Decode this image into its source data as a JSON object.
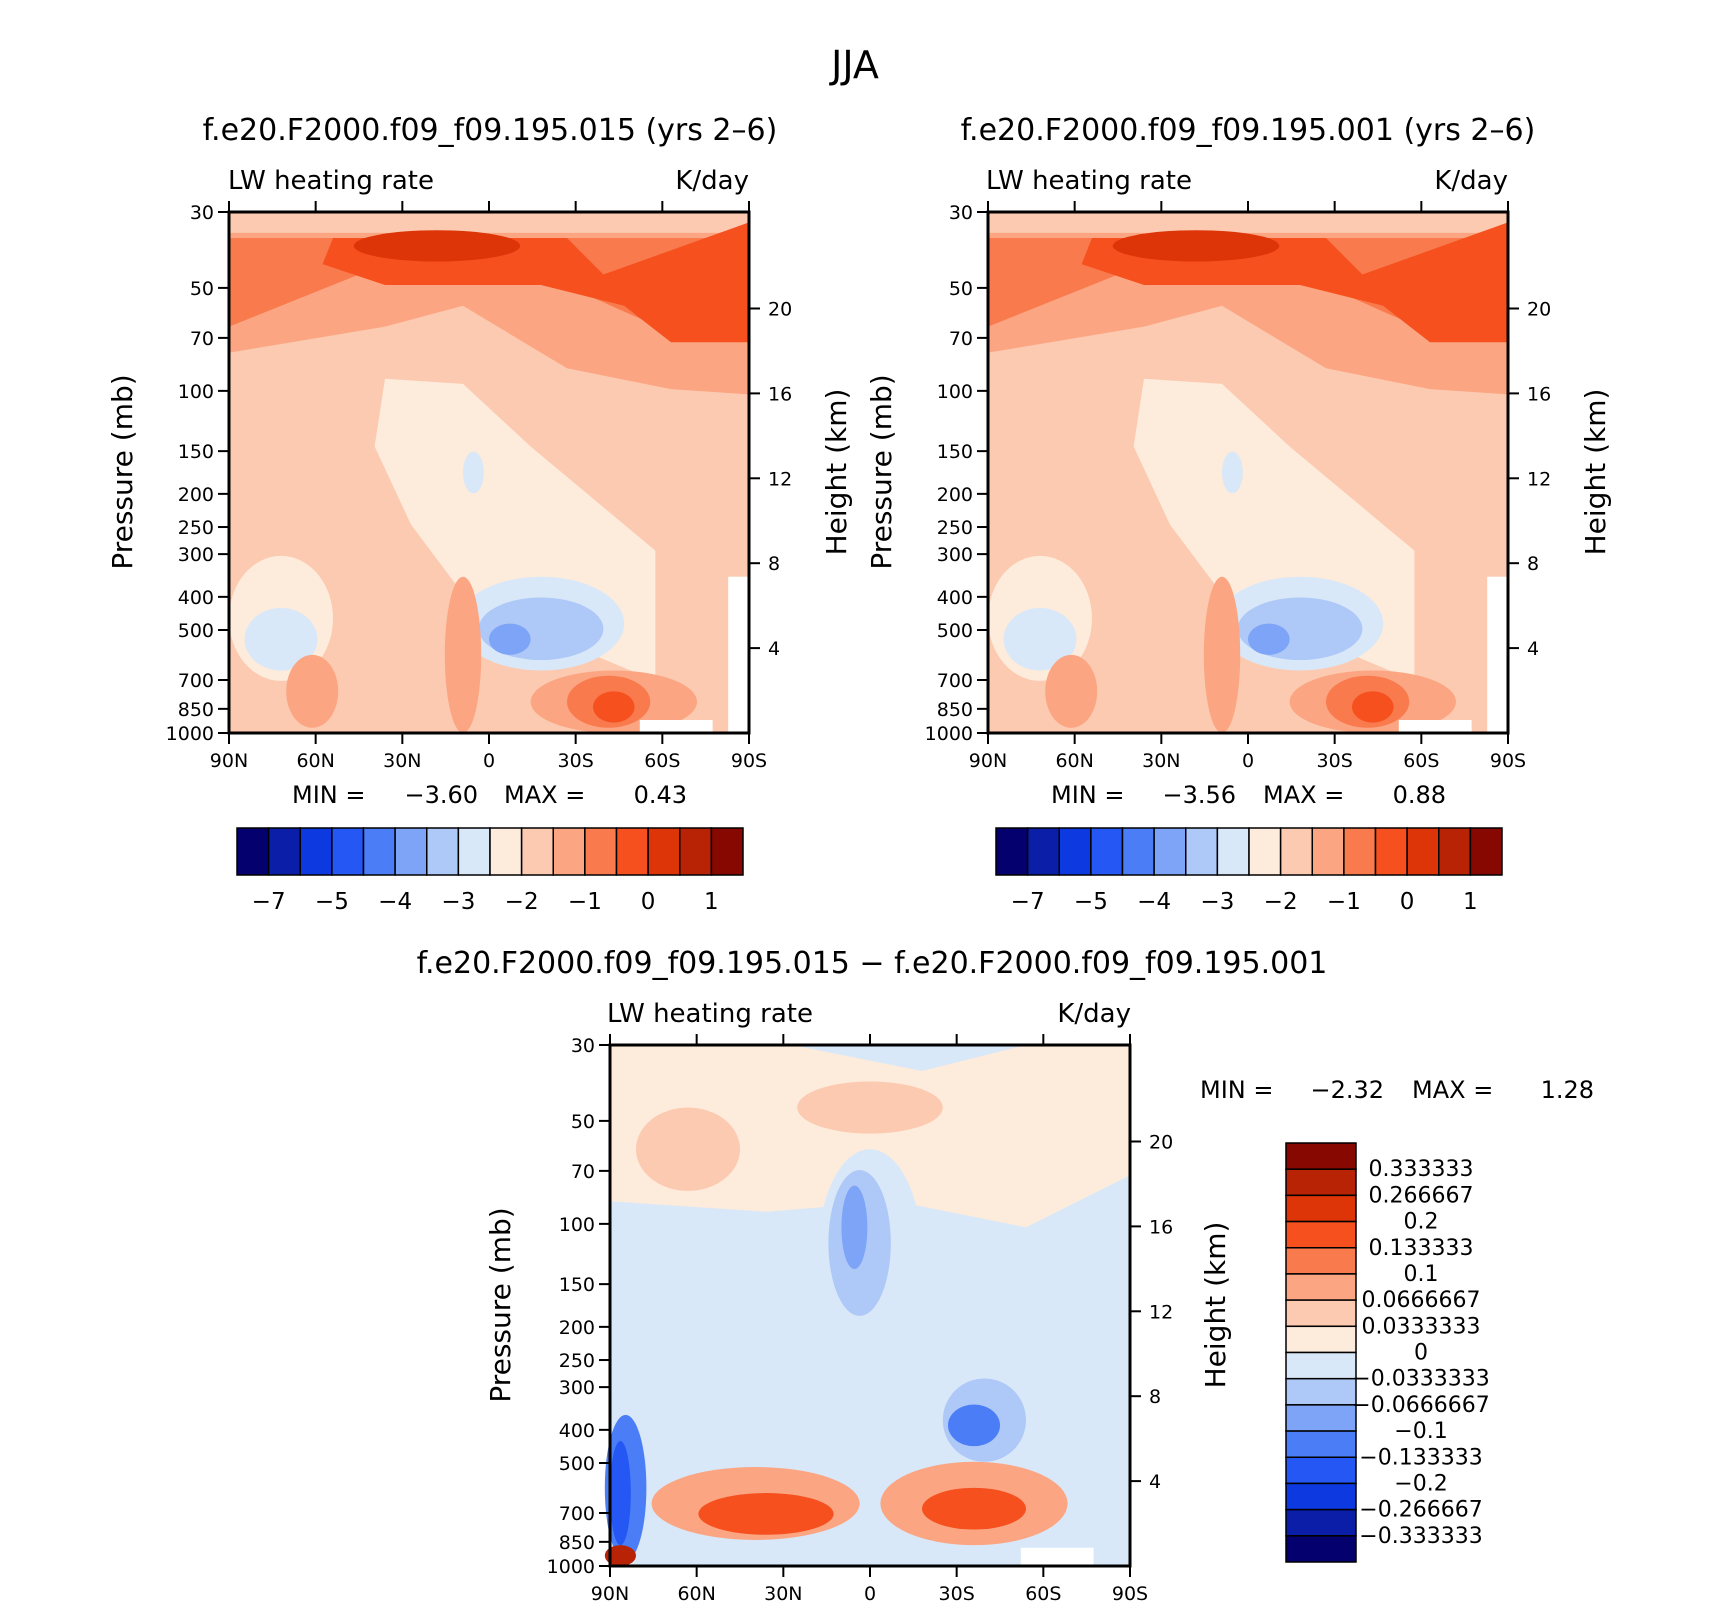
{
  "figure_title": "JJA",
  "chart_data": [
    {
      "id": "p1",
      "type": "heatmap",
      "title": "f.e20.F2000.f09_f09.195.015 (yrs 2–6)",
      "left_subtitle": "LW heating rate",
      "right_subtitle": "K/day",
      "ylabel": "Pressure (mb)",
      "y2label": "Height (km)",
      "x_ticks": [
        "90N",
        "60N",
        "30N",
        "0",
        "30S",
        "60S",
        "90S"
      ],
      "x_range_deg": [
        90,
        -90
      ],
      "y_ticks": [
        "30",
        "50",
        "70",
        "100",
        "150",
        "200",
        "250",
        "300",
        "400",
        "500",
        "700",
        "850",
        "1000"
      ],
      "y_range_mb": [
        30,
        1000
      ],
      "height_ticks_km": [
        "20",
        "16",
        "12",
        "8",
        "4"
      ],
      "min_label": "MIN =",
      "min_value": "−3.60",
      "max_label": "MAX =",
      "max_value": "0.43",
      "colorbar_tick_labels": [
        "−7",
        "−5",
        "−4",
        "−3",
        "−2",
        "−1",
        "0",
        "1"
      ]
    },
    {
      "id": "p2",
      "type": "heatmap",
      "title": "f.e20.F2000.f09_f09.195.001 (yrs 2–6)",
      "left_subtitle": "LW heating rate",
      "right_subtitle": "K/day",
      "ylabel": "Pressure (mb)",
      "y2label": "Height (km)",
      "x_ticks": [
        "90N",
        "60N",
        "30N",
        "0",
        "30S",
        "60S",
        "90S"
      ],
      "x_range_deg": [
        90,
        -90
      ],
      "y_ticks": [
        "30",
        "50",
        "70",
        "100",
        "150",
        "200",
        "250",
        "300",
        "400",
        "500",
        "700",
        "850",
        "1000"
      ],
      "y_range_mb": [
        30,
        1000
      ],
      "height_ticks_km": [
        "20",
        "16",
        "12",
        "8",
        "4"
      ],
      "min_label": "MIN =",
      "min_value": "−3.56",
      "max_label": "MAX =",
      "max_value": "0.88",
      "colorbar_tick_labels": [
        "−7",
        "−5",
        "−4",
        "−3",
        "−2",
        "−1",
        "0",
        "1"
      ]
    },
    {
      "id": "p3",
      "type": "heatmap",
      "title": "f.e20.F2000.f09_f09.195.015 − f.e20.F2000.f09_f09.195.001",
      "left_subtitle": "LW heating rate",
      "right_subtitle": "K/day",
      "ylabel": "Pressure (mb)",
      "y2label": "Height (km)",
      "x_ticks": [
        "90N",
        "60N",
        "30N",
        "0",
        "30S",
        "60S",
        "90S"
      ],
      "x_range_deg": [
        90,
        -90
      ],
      "y_ticks": [
        "30",
        "50",
        "70",
        "100",
        "150",
        "200",
        "250",
        "300",
        "400",
        "500",
        "700",
        "850",
        "1000"
      ],
      "y_range_mb": [
        30,
        1000
      ],
      "height_ticks_km": [
        "20",
        "16",
        "12",
        "8",
        "4"
      ],
      "min_label": "MIN =",
      "min_value": "−2.32",
      "max_label": "MAX =",
      "max_value": "1.28",
      "colorbar_tick_labels": [
        "0.333333",
        "0.266667",
        "0.2",
        "0.133333",
        "0.1",
        "0.0666667",
        "0.0333333",
        "0",
        "−0.0333333",
        "−0.0666667",
        "−0.1",
        "−0.133333",
        "−0.2",
        "−0.266667",
        "−0.333333"
      ]
    }
  ],
  "palette": [
    "#04006e",
    "#0a1ea8",
    "#0d3ae0",
    "#2557f5",
    "#4b7ef6",
    "#7ea4f7",
    "#aec8f7",
    "#d9e8f8",
    "#fdebdc",
    "#fccab0",
    "#fba582",
    "#f97a4d",
    "#f5501e",
    "#de3508",
    "#b82306",
    "#870800"
  ]
}
